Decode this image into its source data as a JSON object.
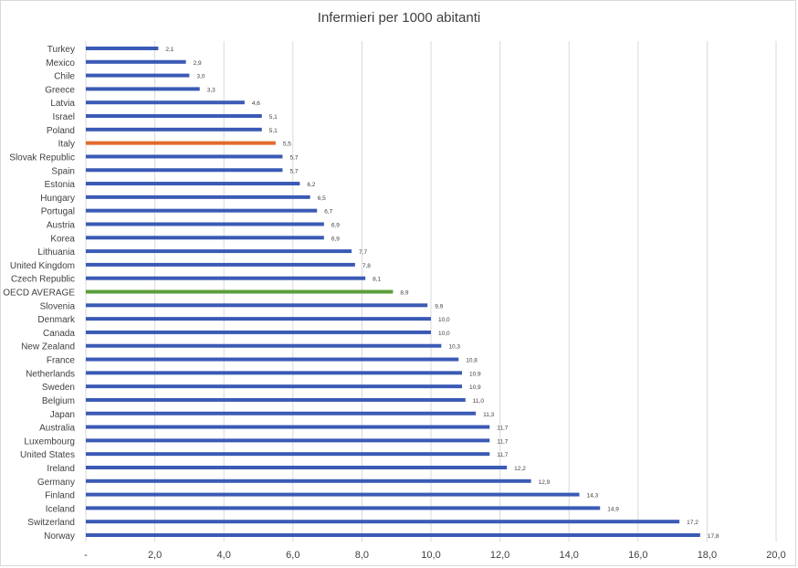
{
  "chart_data": {
    "type": "bar",
    "orientation": "horizontal",
    "title": "Infermieri per 1000 abitanti",
    "categories": [
      "Turkey",
      "Mexico",
      "Chile",
      "Greece",
      "Latvia",
      "Israel",
      "Poland",
      "Italy",
      "Slovak Republic",
      "Spain",
      "Estonia",
      "Hungary",
      "Portugal",
      "Austria",
      "Korea",
      "Lithuania",
      "United Kingdom",
      "Czech Republic",
      "OECD AVERAGE",
      "Slovenia",
      "Denmark",
      "Canada",
      "New Zealand",
      "France",
      "Netherlands",
      "Sweden",
      "Belgium",
      "Japan",
      "Australia",
      "Luxembourg",
      "United States",
      "Ireland",
      "Germany",
      "Finland",
      "Iceland",
      "Switzerland",
      "Norway"
    ],
    "values": [
      2.1,
      2.9,
      3.0,
      3.3,
      4.6,
      5.1,
      5.1,
      5.5,
      5.7,
      5.7,
      6.2,
      6.5,
      6.7,
      6.9,
      6.9,
      7.7,
      7.8,
      8.1,
      8.9,
      9.9,
      10.0,
      10.0,
      10.3,
      10.8,
      10.9,
      10.9,
      11.0,
      11.3,
      11.7,
      11.7,
      11.7,
      12.2,
      12.9,
      14.3,
      14.9,
      17.2,
      17.8
    ],
    "value_labels": [
      "2,1",
      "2,9",
      "3,0",
      "3,3",
      "4,6",
      "5,1",
      "5,1",
      "5,5",
      "5,7",
      "5,7",
      "6,2",
      "6,5",
      "6,7",
      "6,9",
      "6,9",
      "7,7",
      "7,8",
      "8,1",
      "8,9",
      "9,9",
      "10,0",
      "10,0",
      "10,3",
      "10,8",
      "10,9",
      "10,9",
      "11,0",
      "11,3",
      "11,7",
      "11,7",
      "11,7",
      "12,2",
      "12,9",
      "14,3",
      "14,9",
      "17,2",
      "17,8"
    ],
    "xlim": [
      0,
      20
    ],
    "x_ticks": [
      0,
      2,
      4,
      6,
      8,
      10,
      12,
      14,
      16,
      18,
      20
    ],
    "x_tick_labels": [
      "-",
      "2,0",
      "4,0",
      "6,0",
      "8,0",
      "10,0",
      "12,0",
      "14,0",
      "16,0",
      "18,0",
      "20,0"
    ],
    "grid": true,
    "colors": {
      "default": "#3a5ab5",
      "highlight": "#e26a2c",
      "average": "#5a9e3a",
      "grid": "#d9d9d9",
      "text": "#404040"
    },
    "highlight_category": "Italy",
    "average_category": "OECD AVERAGE"
  }
}
